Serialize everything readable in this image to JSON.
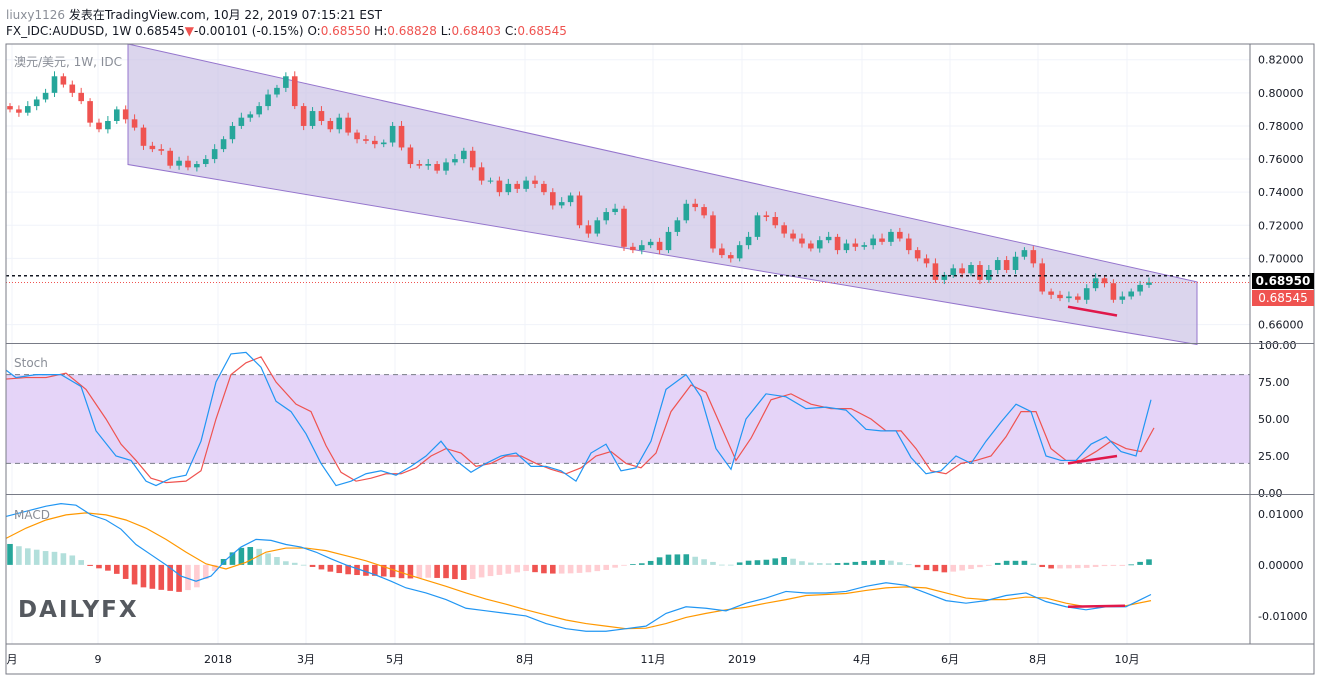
{
  "header": {
    "user": "liuxy1126",
    "published": "发表在TradingView.com, 10月 22, 2019 07:15:21 EST",
    "symbol_line_prefix": "FX_IDC:AUDUSD, 1W",
    "last": "0.68545",
    "change_arrow": "▼",
    "change": "-0.00101 (-0.15%)",
    "o_label": "O:",
    "o": "0.68550",
    "h_label": "H:",
    "h": "0.68828",
    "l_label": "L:",
    "l": "0.68403",
    "c_label": "C:",
    "c": "0.68545"
  },
  "panes": {
    "price_label": "澳元/美元, 1W, IDC",
    "stoch_label": "Stoch",
    "macd_label": "MACD"
  },
  "badges": {
    "resistance": "0.68950",
    "last": "0.68545"
  },
  "logo": {
    "text": "DAILYFX"
  },
  "colors": {
    "up": "#26a69a",
    "down": "#ef5350",
    "channel_fill": "#c7bfe3",
    "channel_line": "#9575cd",
    "stoch_band": "#e1ccf7",
    "k_line": "#2196f3",
    "d_line": "#ef5350",
    "macd_line": "#2196f3",
    "signal_line": "#ff9800",
    "divergence": "#e0184a"
  },
  "chart_data": {
    "type": "candlestick",
    "interval": "1W",
    "x_ticks": [
      "月",
      "9",
      "2018",
      "3月",
      "5月",
      "8月",
      "11月",
      "2019",
      "4月",
      "6月",
      "8月",
      "10月"
    ],
    "price": {
      "yticks": [
        "0.82000",
        "0.80000",
        "0.78000",
        "0.76000",
        "0.74000",
        "0.72000",
        "0.70000",
        "0.66000"
      ],
      "ylim": [
        0.6495,
        0.8295
      ],
      "resistance": 0.6895,
      "last": 0.68545,
      "channel_upper": [
        [
          0.8295,
          0.6858
        ]
      ],
      "channel_lower": [
        [
          0.7567,
          0.648
        ]
      ],
      "closes": [
        0.79,
        0.788,
        0.792,
        0.796,
        0.8,
        0.81,
        0.805,
        0.8,
        0.795,
        0.782,
        0.778,
        0.783,
        0.79,
        0.784,
        0.779,
        0.768,
        0.766,
        0.765,
        0.756,
        0.759,
        0.755,
        0.757,
        0.76,
        0.766,
        0.772,
        0.78,
        0.785,
        0.787,
        0.792,
        0.799,
        0.803,
        0.81,
        0.792,
        0.78,
        0.789,
        0.783,
        0.778,
        0.785,
        0.776,
        0.772,
        0.771,
        0.769,
        0.77,
        0.78,
        0.767,
        0.757,
        0.756,
        0.757,
        0.753,
        0.758,
        0.76,
        0.765,
        0.755,
        0.747,
        0.747,
        0.74,
        0.745,
        0.742,
        0.747,
        0.745,
        0.74,
        0.732,
        0.734,
        0.738,
        0.72,
        0.715,
        0.723,
        0.728,
        0.73,
        0.707,
        0.705,
        0.708,
        0.71,
        0.705,
        0.716,
        0.723,
        0.733,
        0.731,
        0.726,
        0.706,
        0.702,
        0.7,
        0.708,
        0.713,
        0.726,
        0.725,
        0.72,
        0.715,
        0.712,
        0.709,
        0.706,
        0.711,
        0.713,
        0.705,
        0.709,
        0.707,
        0.708,
        0.712,
        0.71,
        0.716,
        0.712,
        0.705,
        0.7,
        0.697,
        0.687,
        0.69,
        0.694,
        0.691,
        0.696,
        0.687,
        0.693,
        0.699,
        0.693,
        0.701,
        0.705,
        0.697,
        0.68,
        0.678,
        0.676,
        0.677,
        0.675,
        0.682,
        0.688,
        0.685,
        0.675,
        0.677,
        0.68,
        0.684,
        0.68545
      ]
    },
    "stoch": {
      "yticks": [
        "100.00",
        "75.00",
        "50.00",
        "25.00",
        "0.00"
      ],
      "ylim": [
        0,
        100
      ],
      "bands": [
        20,
        80
      ],
      "k": [
        [
          0,
          83
        ],
        [
          10,
          78
        ],
        [
          30,
          80
        ],
        [
          55,
          80
        ],
        [
          75,
          72
        ],
        [
          90,
          42
        ],
        [
          110,
          25
        ],
        [
          125,
          22
        ],
        [
          140,
          8
        ],
        [
          150,
          5
        ],
        [
          165,
          10
        ],
        [
          180,
          12
        ],
        [
          195,
          35
        ],
        [
          210,
          75
        ],
        [
          225,
          94
        ],
        [
          240,
          95
        ],
        [
          255,
          85
        ],
        [
          270,
          62
        ],
        [
          285,
          55
        ],
        [
          300,
          40
        ],
        [
          315,
          20
        ],
        [
          330,
          5
        ],
        [
          345,
          8
        ],
        [
          360,
          13
        ],
        [
          375,
          15
        ],
        [
          390,
          12
        ],
        [
          405,
          18
        ],
        [
          420,
          25
        ],
        [
          435,
          35
        ],
        [
          450,
          22
        ],
        [
          465,
          14
        ],
        [
          480,
          20
        ],
        [
          495,
          25
        ],
        [
          510,
          27
        ],
        [
          525,
          18
        ],
        [
          540,
          18
        ],
        [
          555,
          15
        ],
        [
          570,
          8
        ],
        [
          585,
          27
        ],
        [
          600,
          33
        ],
        [
          615,
          15
        ],
        [
          630,
          17
        ],
        [
          645,
          35
        ],
        [
          660,
          70
        ],
        [
          680,
          80
        ],
        [
          695,
          65
        ],
        [
          710,
          30
        ],
        [
          725,
          16
        ],
        [
          740,
          50
        ],
        [
          760,
          67
        ],
        [
          780,
          65
        ],
        [
          800,
          57
        ],
        [
          820,
          58
        ],
        [
          840,
          56
        ],
        [
          860,
          43
        ],
        [
          875,
          42
        ],
        [
          890,
          42
        ],
        [
          905,
          24
        ],
        [
          920,
          13
        ],
        [
          935,
          15
        ],
        [
          950,
          25
        ],
        [
          965,
          20
        ],
        [
          980,
          35
        ],
        [
          995,
          48
        ],
        [
          1010,
          60
        ],
        [
          1025,
          55
        ],
        [
          1040,
          25
        ],
        [
          1055,
          22
        ],
        [
          1070,
          22
        ],
        [
          1085,
          33
        ],
        [
          1100,
          38
        ],
        [
          1115,
          28
        ],
        [
          1130,
          25
        ],
        [
          1145,
          63
        ]
      ],
      "d": [
        [
          0,
          77
        ],
        [
          20,
          78
        ],
        [
          40,
          78
        ],
        [
          60,
          81
        ],
        [
          80,
          70
        ],
        [
          100,
          50
        ],
        [
          115,
          33
        ],
        [
          130,
          22
        ],
        [
          145,
          10
        ],
        [
          160,
          7
        ],
        [
          180,
          8
        ],
        [
          195,
          15
        ],
        [
          210,
          50
        ],
        [
          225,
          80
        ],
        [
          240,
          88
        ],
        [
          255,
          92
        ],
        [
          270,
          75
        ],
        [
          290,
          60
        ],
        [
          305,
          55
        ],
        [
          320,
          32
        ],
        [
          335,
          14
        ],
        [
          350,
          8
        ],
        [
          365,
          10
        ],
        [
          380,
          13
        ],
        [
          395,
          13
        ],
        [
          410,
          17
        ],
        [
          425,
          25
        ],
        [
          440,
          30
        ],
        [
          455,
          27
        ],
        [
          470,
          18
        ],
        [
          485,
          20
        ],
        [
          500,
          25
        ],
        [
          515,
          25
        ],
        [
          530,
          20
        ],
        [
          545,
          16
        ],
        [
          560,
          13
        ],
        [
          575,
          17
        ],
        [
          590,
          25
        ],
        [
          605,
          28
        ],
        [
          620,
          20
        ],
        [
          635,
          17
        ],
        [
          650,
          27
        ],
        [
          665,
          55
        ],
        [
          685,
          73
        ],
        [
          700,
          68
        ],
        [
          715,
          45
        ],
        [
          730,
          22
        ],
        [
          745,
          37
        ],
        [
          765,
          63
        ],
        [
          785,
          67
        ],
        [
          805,
          60
        ],
        [
          825,
          57
        ],
        [
          845,
          57
        ],
        [
          865,
          50
        ],
        [
          880,
          42
        ],
        [
          895,
          42
        ],
        [
          910,
          30
        ],
        [
          925,
          15
        ],
        [
          940,
          13
        ],
        [
          955,
          20
        ],
        [
          970,
          22
        ],
        [
          985,
          25
        ],
        [
          1000,
          38
        ],
        [
          1015,
          55
        ],
        [
          1030,
          55
        ],
        [
          1045,
          30
        ],
        [
          1060,
          22
        ],
        [
          1075,
          22
        ],
        [
          1090,
          28
        ],
        [
          1105,
          35
        ],
        [
          1120,
          30
        ],
        [
          1135,
          28
        ],
        [
          1148,
          44
        ]
      ]
    },
    "macd": {
      "yticks": [
        "0.01000",
        "0.00000",
        "-0.01000"
      ],
      "ylim": [
        -0.0155,
        0.0135
      ],
      "macd": [
        [
          0,
          0.0095
        ],
        [
          20,
          0.0105
        ],
        [
          40,
          0.0115
        ],
        [
          55,
          0.012
        ],
        [
          70,
          0.0117
        ],
        [
          85,
          0.0098
        ],
        [
          100,
          0.0088
        ],
        [
          115,
          0.007
        ],
        [
          130,
          0.004
        ],
        [
          145,
          0.002
        ],
        [
          160,
          0.0
        ],
        [
          175,
          -0.0022
        ],
        [
          190,
          -0.0032
        ],
        [
          205,
          -0.0022
        ],
        [
          220,
          0.001
        ],
        [
          235,
          0.0035
        ],
        [
          250,
          0.005
        ],
        [
          265,
          0.0048
        ],
        [
          280,
          0.004
        ],
        [
          295,
          0.0035
        ],
        [
          310,
          0.0025
        ],
        [
          325,
          0.0012
        ],
        [
          340,
          0.0
        ],
        [
          355,
          -0.001
        ],
        [
          370,
          -0.002
        ],
        [
          385,
          -0.0032
        ],
        [
          400,
          -0.0045
        ],
        [
          420,
          -0.0055
        ],
        [
          440,
          -0.0068
        ],
        [
          460,
          -0.0085
        ],
        [
          480,
          -0.009
        ],
        [
          500,
          -0.0095
        ],
        [
          520,
          -0.01
        ],
        [
          540,
          -0.0115
        ],
        [
          560,
          -0.0125
        ],
        [
          580,
          -0.013
        ],
        [
          600,
          -0.013
        ],
        [
          620,
          -0.0125
        ],
        [
          640,
          -0.012
        ],
        [
          660,
          -0.0095
        ],
        [
          680,
          -0.0082
        ],
        [
          700,
          -0.0085
        ],
        [
          720,
          -0.009
        ],
        [
          740,
          -0.0075
        ],
        [
          760,
          -0.0065
        ],
        [
          780,
          -0.0052
        ],
        [
          800,
          -0.0055
        ],
        [
          820,
          -0.0055
        ],
        [
          840,
          -0.0052
        ],
        [
          860,
          -0.0042
        ],
        [
          880,
          -0.0035
        ],
        [
          900,
          -0.004
        ],
        [
          920,
          -0.0055
        ],
        [
          940,
          -0.007
        ],
        [
          960,
          -0.0075
        ],
        [
          980,
          -0.007
        ],
        [
          1000,
          -0.006
        ],
        [
          1020,
          -0.0055
        ],
        [
          1040,
          -0.0072
        ],
        [
          1060,
          -0.0082
        ],
        [
          1080,
          -0.0088
        ],
        [
          1100,
          -0.0082
        ],
        [
          1120,
          -0.0082
        ],
        [
          1145,
          -0.0058
        ]
      ],
      "signal": [
        [
          0,
          0.0052
        ],
        [
          20,
          0.0072
        ],
        [
          40,
          0.0088
        ],
        [
          60,
          0.0098
        ],
        [
          80,
          0.0102
        ],
        [
          100,
          0.0098
        ],
        [
          120,
          0.0088
        ],
        [
          140,
          0.0072
        ],
        [
          160,
          0.005
        ],
        [
          180,
          0.0025
        ],
        [
          200,
          0.0002
        ],
        [
          220,
          -0.0008
        ],
        [
          240,
          0.0005
        ],
        [
          260,
          0.0025
        ],
        [
          280,
          0.0033
        ],
        [
          300,
          0.0033
        ],
        [
          320,
          0.0028
        ],
        [
          340,
          0.0018
        ],
        [
          360,
          0.0008
        ],
        [
          380,
          -0.0005
        ],
        [
          400,
          -0.0018
        ],
        [
          420,
          -0.003
        ],
        [
          440,
          -0.0042
        ],
        [
          460,
          -0.0055
        ],
        [
          480,
          -0.0067
        ],
        [
          500,
          -0.0077
        ],
        [
          520,
          -0.0088
        ],
        [
          540,
          -0.0098
        ],
        [
          560,
          -0.0108
        ],
        [
          580,
          -0.0115
        ],
        [
          600,
          -0.012
        ],
        [
          620,
          -0.0125
        ],
        [
          640,
          -0.0124
        ],
        [
          660,
          -0.0115
        ],
        [
          680,
          -0.0103
        ],
        [
          700,
          -0.0095
        ],
        [
          720,
          -0.0088
        ],
        [
          740,
          -0.0083
        ],
        [
          760,
          -0.0075
        ],
        [
          780,
          -0.0068
        ],
        [
          800,
          -0.006
        ],
        [
          820,
          -0.0058
        ],
        [
          840,
          -0.0056
        ],
        [
          860,
          -0.005
        ],
        [
          880,
          -0.0045
        ],
        [
          900,
          -0.0043
        ],
        [
          920,
          -0.0045
        ],
        [
          940,
          -0.0055
        ],
        [
          960,
          -0.0065
        ],
        [
          980,
          -0.0068
        ],
        [
          1000,
          -0.0068
        ],
        [
          1020,
          -0.0063
        ],
        [
          1040,
          -0.0065
        ],
        [
          1060,
          -0.0075
        ],
        [
          1080,
          -0.0082
        ],
        [
          1100,
          -0.008
        ],
        [
          1120,
          -0.008
        ],
        [
          1145,
          -0.007
        ]
      ]
    }
  }
}
